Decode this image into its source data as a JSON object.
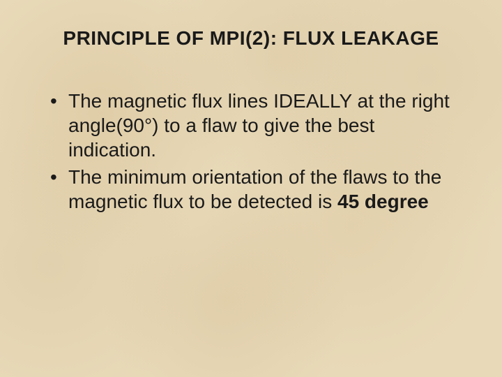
{
  "slide": {
    "title": "PRINCIPLE OF MPI(2): FLUX LEAKAGE",
    "title_fontsize": 28,
    "title_color": "#1a1a1a",
    "body_fontsize": 28,
    "body_color": "#1a1a1a",
    "background_color": "#e8d9b8",
    "bullets": [
      {
        "pre": "The magnetic flux lines IDEALLY at the right angle(90°) to a flaw to give the best indication.",
        "bold": "",
        "post": ""
      },
      {
        "pre": "The minimum orientation of the flaws to the magnetic flux to be detected is ",
        "bold": "45 degree",
        "post": ""
      }
    ]
  }
}
